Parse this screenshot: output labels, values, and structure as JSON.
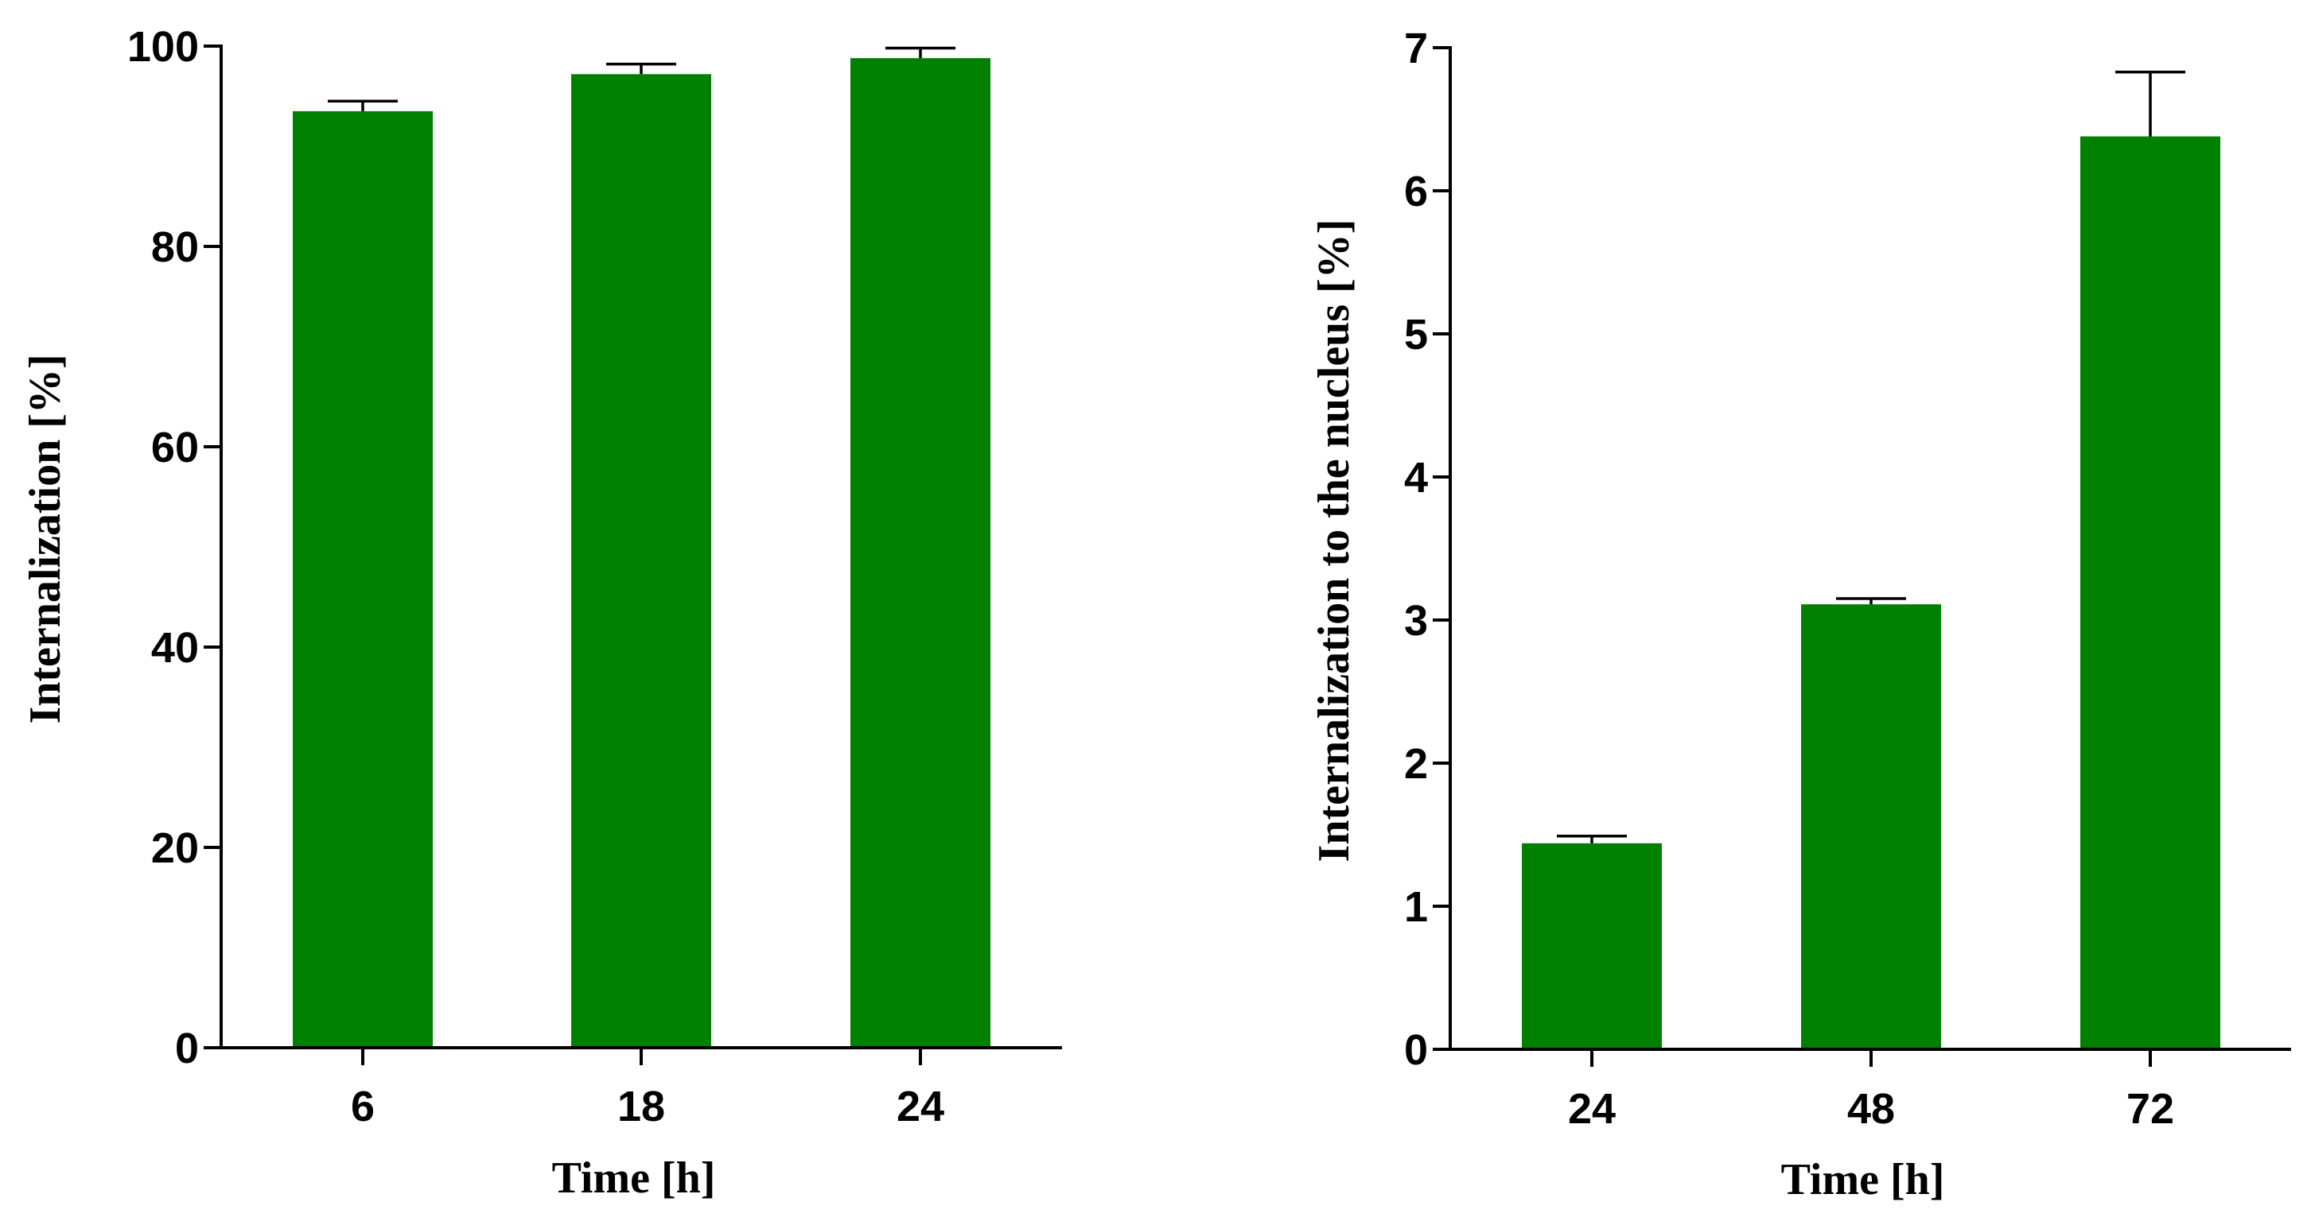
{
  "colors": {
    "bar_fill": "#008000",
    "axis": "#000000",
    "background": "#ffffff"
  },
  "chart_data": [
    {
      "type": "bar",
      "categories": [
        "6",
        "18",
        "24"
      ],
      "values": [
        93.5,
        97.2,
        98.8
      ],
      "error_upper": [
        94.5,
        98.2,
        99.8
      ],
      "xlabel": "Time [h]",
      "ylabel": "Internalization [%]",
      "ylim": [
        0,
        100
      ],
      "yticks": [
        0,
        20,
        40,
        60,
        80,
        100
      ],
      "ytick_labels": [
        "0",
        "20",
        "40",
        "60",
        "80",
        "100"
      ],
      "grid": false,
      "legend": "none"
    },
    {
      "type": "bar",
      "categories": [
        "24",
        "48",
        "72"
      ],
      "values": [
        1.44,
        3.11,
        6.38
      ],
      "error_upper": [
        1.49,
        3.15,
        6.83
      ],
      "xlabel": "Time [h]",
      "ylabel": "Internalization to the nucleus [%]",
      "ylim": [
        0,
        7
      ],
      "yticks": [
        0,
        1,
        2,
        3,
        4,
        5,
        6,
        7
      ],
      "ytick_labels": [
        "0",
        "1",
        "2",
        "3",
        "4",
        "5",
        "6",
        "7"
      ],
      "grid": false,
      "legend": "none"
    }
  ]
}
